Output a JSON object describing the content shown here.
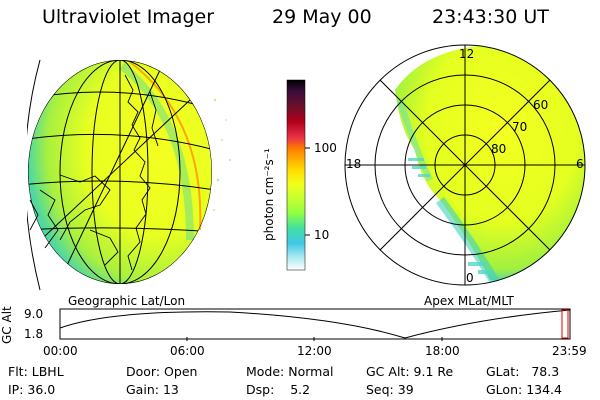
{
  "header": {
    "instrument": "Ultraviolet Imager",
    "date": "29 May 00",
    "time": "23:43:30 UT"
  },
  "colorbar": {
    "unit_label": "photon cm⁻²s⁻¹",
    "ticks": [
      "100",
      "10"
    ],
    "colors_top_to_bottom": [
      "#000000",
      "#3a0d3c",
      "#6b0f2a",
      "#b3001a",
      "#e6304a",
      "#ff7a00",
      "#ffb000",
      "#ffe000",
      "#f0ff1a",
      "#c8ff30",
      "#90ff40",
      "#40e0a0",
      "#40c8e8",
      "#a8e8f0",
      "#ffffff"
    ]
  },
  "panels": {
    "left_label": "Geographic Lat/Lon",
    "right_label": "Apex MLat/MLT",
    "polar_labels": {
      "top": "12",
      "left": "18",
      "right": "6",
      "bottom": "0",
      "lat60": "60",
      "lat70": "70",
      "lat80": "80"
    }
  },
  "altitude_plot": {
    "ylabel": "GC Alt",
    "yticks": [
      "9.0",
      "1.8"
    ],
    "xticks": [
      "00:00",
      "06:00",
      "12:00",
      "18:00",
      "23:59"
    ]
  },
  "info": {
    "flt_label": "Flt:",
    "flt": "LBHL",
    "ip_label": "IP:",
    "ip": "36.0",
    "door_label": "Door:",
    "door": "Open",
    "gain_label": "Gain:",
    "gain": "13",
    "mode_label": "Mode:",
    "mode": "Normal",
    "dsp_label": "Dsp:",
    "dsp": "5.2",
    "gcalt_label": "GC Alt:",
    "gcalt": "9.1 Re",
    "seq_label": "Seq:",
    "seq": "39",
    "glat_label": "GLat:",
    "glat": "78.3",
    "glon_label": "GLon:",
    "glon": "134.4"
  },
  "colors": {
    "bright": "#f0ff20",
    "mid": "#a8f040",
    "edge": "#40d8b0",
    "highlight": "#ff9000"
  }
}
